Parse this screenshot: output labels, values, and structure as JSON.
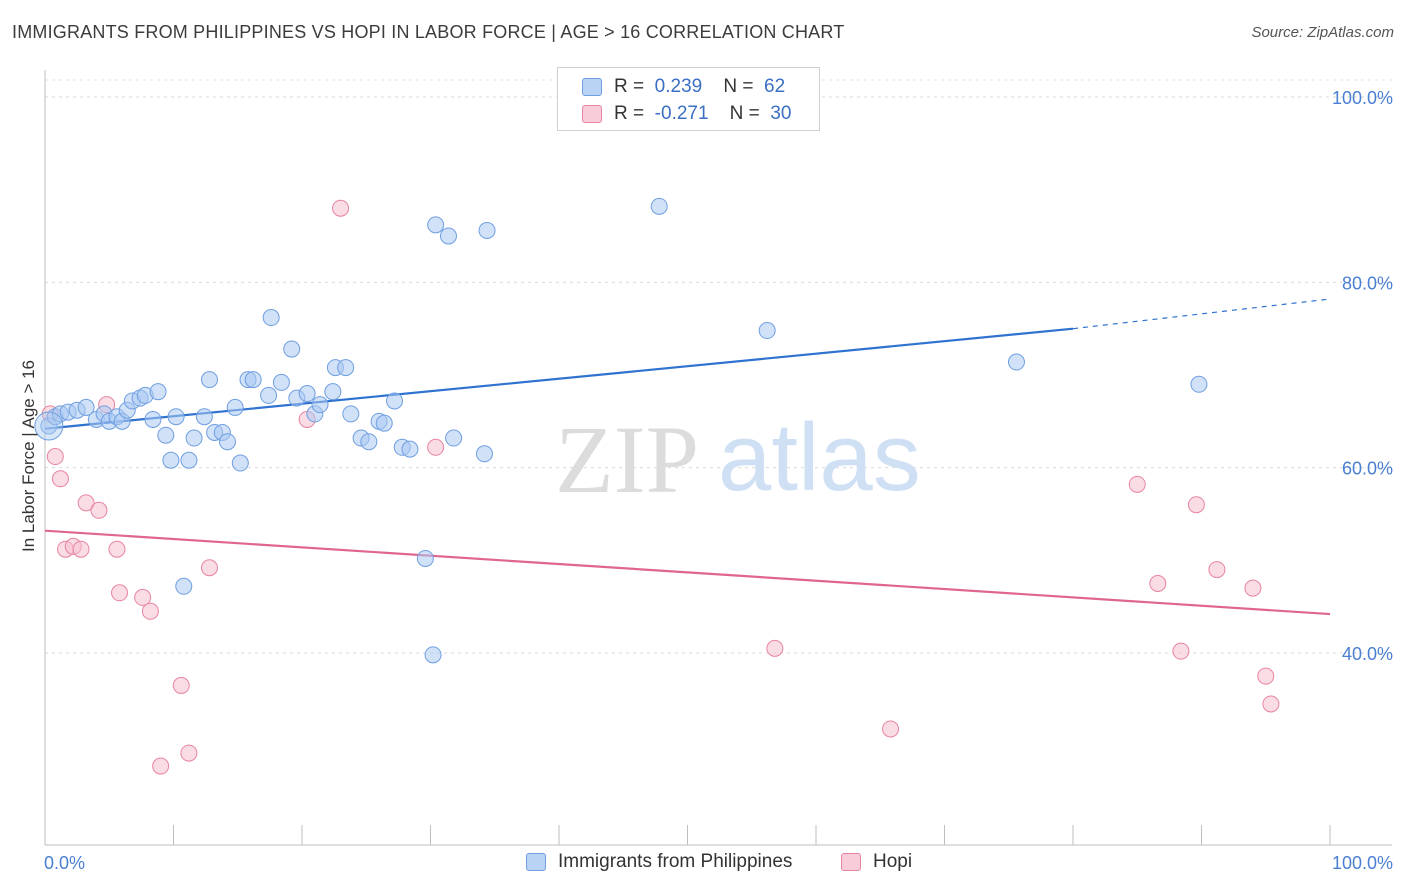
{
  "title": "IMMIGRANTS FROM PHILIPPINES VS HOPI IN LABOR FORCE | AGE > 16 CORRELATION CHART",
  "source": "Source: ZipAtlas.com",
  "watermark": {
    "zip": "ZIP",
    "atlas": "atlas"
  },
  "colors": {
    "blue": "#a9c9f2",
    "blue_stroke": "#6f9fe0",
    "blue_line": "#2f72d0",
    "pink": "#f6bfd0",
    "pink_stroke": "#e8849f",
    "pink_line": "#e0668e",
    "tick_label": "#4a7fd1"
  },
  "legend": {
    "rows": [
      {
        "r_label": "R =",
        "r_value": "0.239",
        "n_label": "N =",
        "n_value": "62"
      },
      {
        "r_label": "R =",
        "r_value": "-0.271",
        "n_label": "N =",
        "n_value": "30"
      }
    ]
  },
  "bottom_legend": [
    "Immigrants from Philippines",
    "Hopi"
  ],
  "chart_data": {
    "type": "scatter",
    "title": "IMMIGRANTS FROM PHILIPPINES VS HOPI IN LABOR FORCE | AGE > 16 CORRELATION CHART",
    "xlabel": "",
    "ylabel": "In Labor Force | Age > 16",
    "xlim": [
      0,
      100
    ],
    "ylim": [
      20,
      102
    ],
    "x_tick_labels": [
      "0.0%",
      "100.0%"
    ],
    "y_ticks": [
      40,
      60,
      80,
      100
    ],
    "y_tick_labels": [
      "40.0%",
      "60.0%",
      "80.0%",
      "100.0%"
    ],
    "grid": true,
    "legend_position": "top-center",
    "series": [
      {
        "name": "Immigrants from Philippines",
        "r": 0.239,
        "n": 62,
        "trend": {
          "x0": 0,
          "y0": 64.2,
          "x1": 80,
          "y1": 75.0,
          "dashed_to_x": 100,
          "dashed_to_y": 78.2
        },
        "points": [
          [
            0.3,
            64.5
          ],
          [
            0.8,
            65.5
          ],
          [
            1.2,
            65.8
          ],
          [
            1.8,
            66.0
          ],
          [
            2.5,
            66.2
          ],
          [
            3.2,
            66.5
          ],
          [
            4.0,
            65.2
          ],
          [
            4.6,
            65.8
          ],
          [
            5.0,
            65.0
          ],
          [
            5.6,
            65.5
          ],
          [
            6.0,
            65.0
          ],
          [
            6.4,
            66.2
          ],
          [
            6.8,
            67.2
          ],
          [
            7.4,
            67.5
          ],
          [
            7.8,
            67.8
          ],
          [
            8.4,
            65.2
          ],
          [
            8.8,
            68.2
          ],
          [
            9.4,
            63.5
          ],
          [
            9.8,
            60.8
          ],
          [
            10.2,
            65.5
          ],
          [
            11.2,
            60.8
          ],
          [
            11.6,
            63.2
          ],
          [
            12.4,
            65.5
          ],
          [
            12.8,
            69.5
          ],
          [
            13.2,
            63.8
          ],
          [
            13.8,
            63.8
          ],
          [
            14.2,
            62.8
          ],
          [
            14.8,
            66.5
          ],
          [
            15.2,
            60.5
          ],
          [
            15.8,
            69.5
          ],
          [
            16.2,
            69.5
          ],
          [
            17.4,
            67.8
          ],
          [
            17.6,
            76.2
          ],
          [
            18.4,
            69.2
          ],
          [
            19.2,
            72.8
          ],
          [
            19.6,
            67.5
          ],
          [
            20.4,
            68.0
          ],
          [
            21.0,
            65.8
          ],
          [
            21.4,
            66.8
          ],
          [
            22.4,
            68.2
          ],
          [
            22.6,
            70.8
          ],
          [
            23.4,
            70.8
          ],
          [
            23.8,
            65.8
          ],
          [
            24.6,
            63.2
          ],
          [
            25.2,
            62.8
          ],
          [
            26.0,
            65.0
          ],
          [
            26.4,
            64.8
          ],
          [
            27.2,
            67.2
          ],
          [
            27.8,
            62.2
          ],
          [
            28.4,
            62.0
          ],
          [
            29.6,
            50.2
          ],
          [
            30.2,
            39.8
          ],
          [
            30.4,
            86.2
          ],
          [
            31.4,
            85.0
          ],
          [
            31.8,
            63.2
          ],
          [
            34.2,
            61.5
          ],
          [
            34.4,
            85.6
          ],
          [
            47.8,
            88.2
          ],
          [
            56.2,
            74.8
          ],
          [
            75.6,
            71.4
          ],
          [
            89.8,
            69.0
          ],
          [
            10.8,
            47.2
          ]
        ]
      },
      {
        "name": "Hopi",
        "r": -0.271,
        "n": 30,
        "trend": {
          "x0": 0,
          "y0": 53.2,
          "x1": 100,
          "y1": 44.2
        },
        "points": [
          [
            0.4,
            65.8
          ],
          [
            0.8,
            61.2
          ],
          [
            1.2,
            58.8
          ],
          [
            1.6,
            51.2
          ],
          [
            2.2,
            51.5
          ],
          [
            2.8,
            51.2
          ],
          [
            3.2,
            56.2
          ],
          [
            4.2,
            55.4
          ],
          [
            4.8,
            66.8
          ],
          [
            5.6,
            51.2
          ],
          [
            5.8,
            46.5
          ],
          [
            7.6,
            46.0
          ],
          [
            8.2,
            44.5
          ],
          [
            9.0,
            27.8
          ],
          [
            10.6,
            36.5
          ],
          [
            11.2,
            29.2
          ],
          [
            12.8,
            49.2
          ],
          [
            20.4,
            65.2
          ],
          [
            23.0,
            88.0
          ],
          [
            30.4,
            62.2
          ],
          [
            56.8,
            40.5
          ],
          [
            65.8,
            31.8
          ],
          [
            85.0,
            58.2
          ],
          [
            86.6,
            47.5
          ],
          [
            88.4,
            40.2
          ],
          [
            89.6,
            56.0
          ],
          [
            91.2,
            49.0
          ],
          [
            94.0,
            47.0
          ],
          [
            95.0,
            37.5
          ],
          [
            95.4,
            34.5
          ]
        ]
      }
    ]
  }
}
